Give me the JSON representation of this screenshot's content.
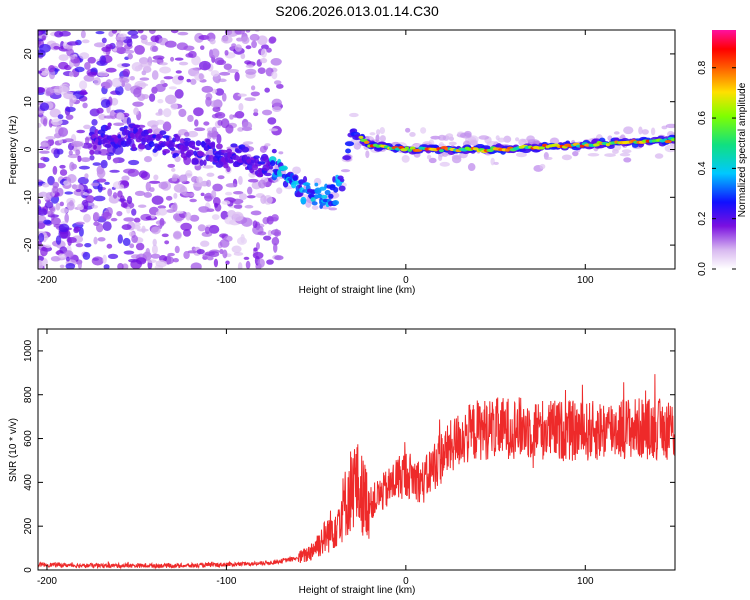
{
  "title": "S206.2026.013.01.14.C30",
  "chart_data": [
    {
      "type": "heatmap",
      "xlabel": "Height of straight line (km)",
      "ylabel": "Frequency (Hz)",
      "xlim": [
        -205,
        150
      ],
      "ylim": [
        -25,
        25
      ],
      "xticks": [
        "-200",
        "-100",
        "0",
        "100"
      ],
      "xtick_values": [
        -200,
        -100,
        0,
        100
      ],
      "yticks": [
        "20",
        "10",
        "0",
        "-10",
        "-20"
      ],
      "ytick_values": [
        20,
        10,
        0,
        -10,
        -20
      ],
      "colorbar": {
        "label": "Normalized spectral amplitude",
        "range": [
          0.0,
          0.95
        ],
        "ticks": [
          "0.0",
          "0.2",
          "0.4",
          "0.6",
          "0.8"
        ],
        "tick_values": [
          0.0,
          0.2,
          0.4,
          0.6,
          0.8
        ],
        "colormap": "white-purple-blue-cyan-green-yellow-red-magenta"
      },
      "ridge": [
        {
          "x": -170,
          "y": 2
        },
        {
          "x": -150,
          "y": 3
        },
        {
          "x": -120,
          "y": 0
        },
        {
          "x": -90,
          "y": -2
        },
        {
          "x": -70,
          "y": -4
        },
        {
          "x": -60,
          "y": -8
        },
        {
          "x": -50,
          "y": -10
        },
        {
          "x": -40,
          "y": -9
        },
        {
          "x": -35,
          "y": -6
        },
        {
          "x": -30,
          "y": 4
        },
        {
          "x": -20,
          "y": 1
        },
        {
          "x": 0,
          "y": 0
        },
        {
          "x": 50,
          "y": 0
        },
        {
          "x": 100,
          "y": 1
        },
        {
          "x": 150,
          "y": 2
        }
      ]
    },
    {
      "type": "line",
      "xlabel": "Height of straight line (km)",
      "ylabel": "SNR (10 * v/v)",
      "xlim": [
        -205,
        150
      ],
      "ylim": [
        0,
        1100
      ],
      "xticks": [
        "-200",
        "-100",
        "0",
        "100"
      ],
      "xtick_values": [
        -200,
        -100,
        0,
        100
      ],
      "yticks": [
        "0",
        "200",
        "400",
        "600",
        "800",
        "1000"
      ],
      "ytick_values": [
        0,
        200,
        400,
        600,
        800,
        1000
      ],
      "line_color": "#ee2a2a",
      "series": [
        {
          "x": [
            -205,
            -180,
            -150,
            -120,
            -100,
            -80,
            -70,
            -60,
            -55,
            -50,
            -45,
            -40,
            -35,
            -30,
            -28,
            -25,
            -20,
            -15,
            -10,
            -5,
            0,
            5,
            10,
            15,
            20,
            25,
            30,
            40,
            60,
            80,
            100,
            120,
            150
          ],
          "values": [
            25,
            20,
            20,
            20,
            25,
            30,
            40,
            55,
            70,
            110,
            150,
            200,
            280,
            380,
            400,
            350,
            300,
            340,
            370,
            420,
            440,
            420,
            400,
            470,
            520,
            560,
            600,
            640,
            650,
            640,
            630,
            650,
            640
          ]
        }
      ]
    }
  ]
}
